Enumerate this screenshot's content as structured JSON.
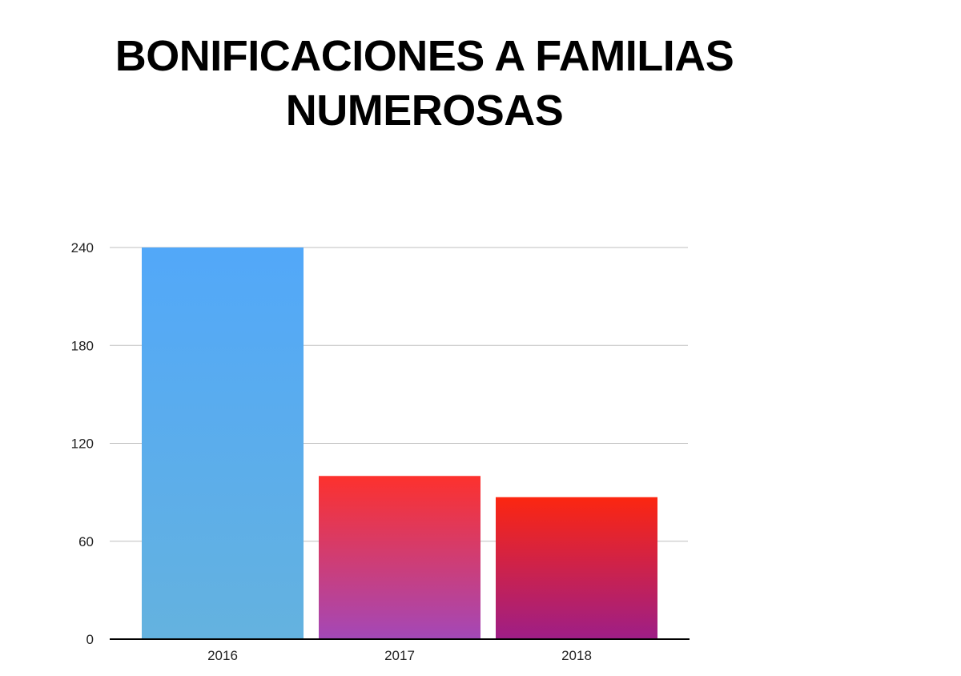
{
  "chart_data": {
    "type": "bar",
    "title_lines": [
      "BONIFICACIONES A FAMILIAS",
      "NUMEROSAS"
    ],
    "categories": [
      "2016",
      "2017",
      "2018"
    ],
    "values": [
      240,
      100,
      87
    ],
    "ylim": [
      0,
      240
    ],
    "yticks": [
      0,
      60,
      120,
      180,
      240
    ],
    "grid": true,
    "bar_gradients": [
      {
        "top": "#52A8F9",
        "bottom": "#64B2DF"
      },
      {
        "top": "#FD312D",
        "bottom": "#A348B8"
      },
      {
        "top": "#FC2610",
        "bottom": "#9D1E87"
      }
    ],
    "gridline_color": "#BFBFBF",
    "axis_color": "#000000"
  }
}
